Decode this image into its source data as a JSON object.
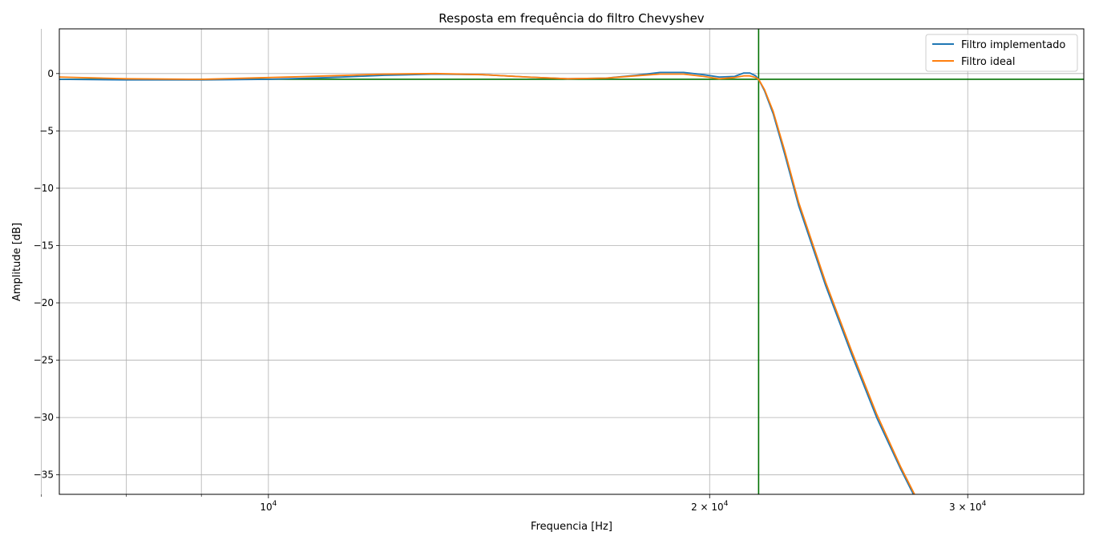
{
  "chart_data": {
    "type": "line",
    "title": "Resposta em frequência do filtro Chevyshev",
    "xlabel": "Frequencia [Hz]",
    "ylabel": "Amplitude [dB]",
    "xscale": "log",
    "xlim": [
      7200,
      36000
    ],
    "ylim": [
      -36.7,
      3.9
    ],
    "grid": true,
    "legend_position": "top-right",
    "x_ticks": [
      {
        "value": 10000,
        "base": "10",
        "exp": "4",
        "mult": ""
      },
      {
        "value": 20000,
        "base": "10",
        "exp": "4",
        "mult": "2 × "
      },
      {
        "value": 30000,
        "base": "10",
        "exp": "4",
        "mult": "3 × "
      }
    ],
    "x_minor_ticks": [
      7000,
      8000,
      9000
    ],
    "y_ticks": [
      0,
      -5,
      -10,
      -15,
      -20,
      -25,
      -30,
      -35
    ],
    "y_tick_labels": [
      "0",
      "−5",
      "−10",
      "−15",
      "−20",
      "−25",
      "−30",
      "−35"
    ],
    "reference_lines": [
      {
        "orientation": "horizontal",
        "value": -0.5,
        "color": "#007000"
      },
      {
        "orientation": "vertical",
        "value": 21600,
        "color": "#007000"
      }
    ],
    "series": [
      {
        "name": "Filtro implementado",
        "color": "#1f77b4",
        "x": [
          7200,
          8000,
          9000,
          10000,
          11000,
          12000,
          13000,
          14000,
          15000,
          16000,
          17000,
          17800,
          18500,
          19200,
          19800,
          20300,
          20800,
          21100,
          21300,
          21500,
          21600,
          21800,
          22100,
          22500,
          23000,
          24000,
          25000,
          26000,
          27000,
          28000,
          28900
        ],
        "y": [
          -0.5,
          -0.55,
          -0.55,
          -0.5,
          -0.35,
          -0.15,
          -0.05,
          -0.1,
          -0.3,
          -0.45,
          -0.4,
          -0.15,
          0.1,
          0.1,
          -0.1,
          -0.3,
          -0.25,
          0.05,
          0.05,
          -0.2,
          -0.5,
          -1.5,
          -3.5,
          -7.0,
          -11.5,
          -18.5,
          -24.5,
          -30.0,
          -34.5,
          -38.5,
          -41.5
        ]
      },
      {
        "name": "Filtro ideal",
        "color": "#ff7f0e",
        "x": [
          7200,
          8000,
          9000,
          10000,
          11000,
          12000,
          13000,
          14000,
          15000,
          16000,
          17000,
          17800,
          18500,
          19200,
          19800,
          20300,
          20800,
          21100,
          21300,
          21500,
          21600,
          21800,
          22100,
          22500,
          23000,
          24000,
          25000,
          26000,
          27000,
          28000,
          28900
        ],
        "y": [
          -0.3,
          -0.45,
          -0.5,
          -0.35,
          -0.2,
          -0.05,
          0.0,
          -0.1,
          -0.3,
          -0.45,
          -0.4,
          -0.2,
          -0.05,
          -0.05,
          -0.25,
          -0.45,
          -0.35,
          -0.2,
          -0.2,
          -0.35,
          -0.5,
          -1.4,
          -3.3,
          -6.7,
          -11.2,
          -18.2,
          -24.2,
          -29.7,
          -34.3,
          -38.3,
          -41.3
        ]
      }
    ]
  }
}
